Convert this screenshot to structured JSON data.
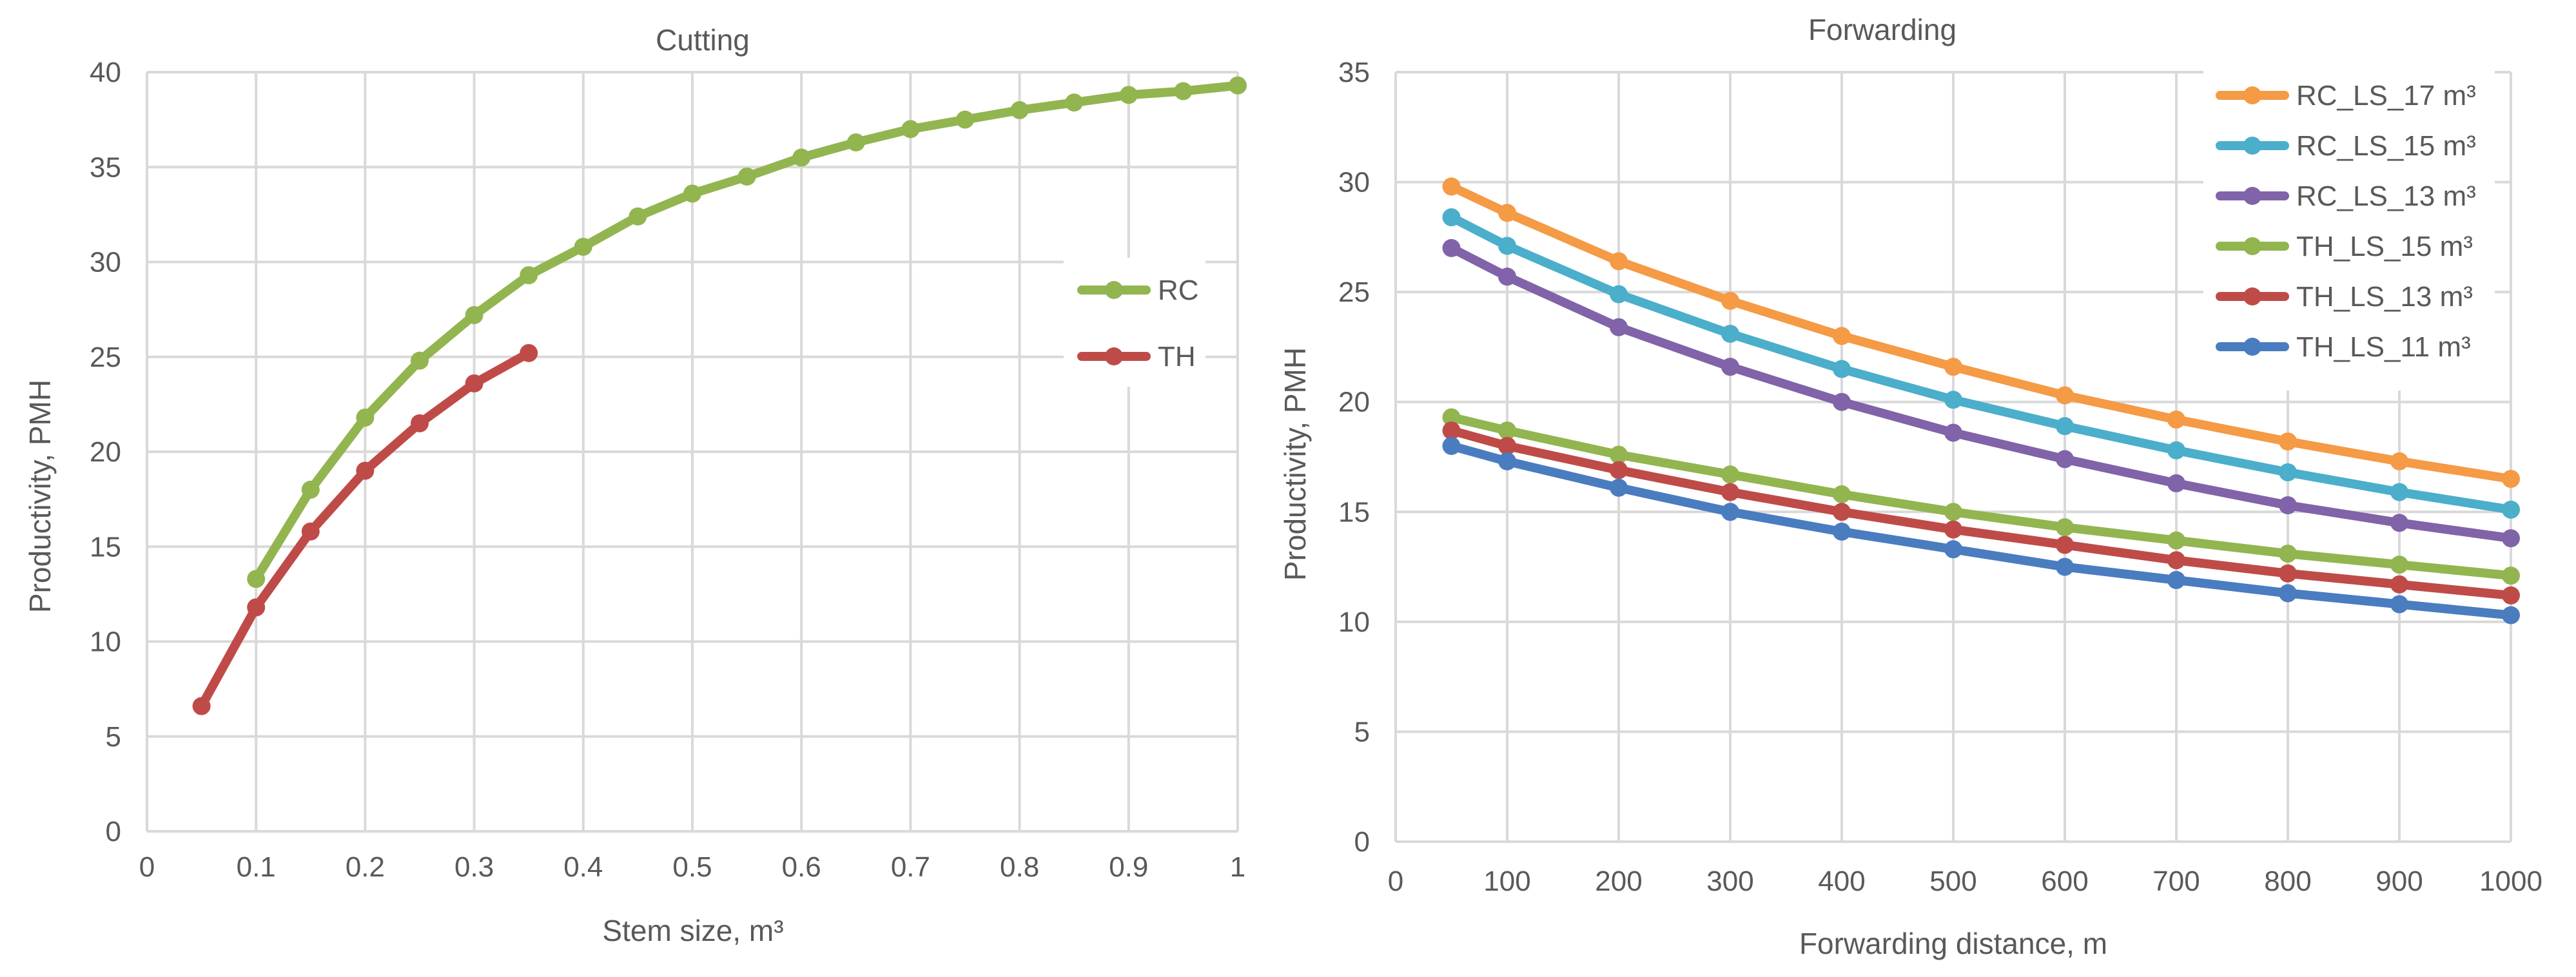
{
  "chart_data": [
    {
      "type": "line",
      "title": "Cutting",
      "xlabel": "Stem size, m³",
      "ylabel": "Productivity, PMH",
      "xlim": [
        0,
        1
      ],
      "ylim": [
        0,
        40
      ],
      "x_ticks": [
        "0",
        "0.1",
        "0.2",
        "0.3",
        "0.4",
        "0.5",
        "0.6",
        "0.7",
        "0.8",
        "0.9",
        "1"
      ],
      "y_ticks": [
        "0",
        "5",
        "10",
        "15",
        "20",
        "25",
        "30",
        "35",
        "40"
      ],
      "legend_position": "right",
      "series": [
        {
          "name": "RC",
          "color": "#92b550",
          "x": [
            0.1,
            0.15,
            0.2,
            0.25,
            0.3,
            0.35,
            0.4,
            0.45,
            0.5,
            0.55,
            0.6,
            0.65,
            0.7,
            0.75,
            0.8,
            0.85,
            0.9,
            0.95,
            1.0
          ],
          "y": [
            13.3,
            18.0,
            21.8,
            24.8,
            27.2,
            29.3,
            30.8,
            32.4,
            33.6,
            34.5,
            35.5,
            36.3,
            37.0,
            37.5,
            38.0,
            38.4,
            38.8,
            39.0,
            39.3
          ]
        },
        {
          "name": "TH",
          "color": "#bf4b48",
          "x": [
            0.05,
            0.1,
            0.15,
            0.2,
            0.25,
            0.3,
            0.35
          ],
          "y": [
            6.6,
            11.8,
            15.8,
            19.0,
            21.5,
            23.6,
            25.2
          ]
        }
      ]
    },
    {
      "type": "line",
      "title": "Forwarding",
      "xlabel": "Forwarding distance, m",
      "ylabel": "Productivity, PMH",
      "xlim": [
        0,
        1000
      ],
      "ylim": [
        0,
        35
      ],
      "x_tick_values": [
        0,
        100,
        200,
        300,
        400,
        500,
        600,
        700,
        800,
        900,
        1000
      ],
      "x_ticks": [
        "0",
        "100",
        "200",
        "300",
        "400",
        "500",
        "600",
        "700",
        "800",
        "900",
        "1000"
      ],
      "y_ticks": [
        "0",
        "5",
        "10",
        "15",
        "20",
        "25",
        "30",
        "35"
      ],
      "legend_position": "top-right",
      "x": [
        50,
        100,
        200,
        300,
        400,
        500,
        600,
        700,
        800,
        900,
        1000
      ],
      "series": [
        {
          "name": "RC_LS_17 m³",
          "color": "#f59a45",
          "y": [
            29.8,
            28.6,
            26.4,
            24.6,
            23.0,
            21.6,
            20.3,
            19.2,
            18.2,
            17.3,
            16.5
          ]
        },
        {
          "name": "RC_LS_15 m³",
          "color": "#4baecb",
          "y": [
            28.4,
            27.1,
            24.9,
            23.1,
            21.5,
            20.1,
            18.9,
            17.8,
            16.8,
            15.9,
            15.1
          ]
        },
        {
          "name": "RC_LS_13 m³",
          "color": "#8063a8",
          "y": [
            27.0,
            25.7,
            23.4,
            21.6,
            20.0,
            18.6,
            17.4,
            16.3,
            15.3,
            14.5,
            13.8
          ]
        },
        {
          "name": "TH_LS_15 m³",
          "color": "#92b550",
          "y": [
            19.3,
            18.7,
            17.6,
            16.7,
            15.8,
            15.0,
            14.3,
            13.7,
            13.1,
            12.6,
            12.1
          ]
        },
        {
          "name": "TH_LS_13 m³",
          "color": "#bf4b48",
          "y": [
            18.7,
            18.0,
            16.9,
            15.9,
            15.0,
            14.2,
            13.5,
            12.8,
            12.2,
            11.7,
            11.2
          ]
        },
        {
          "name": "TH_LS_11 m³",
          "color": "#4a7cc0",
          "y": [
            18.0,
            17.3,
            16.1,
            15.0,
            14.1,
            13.3,
            12.5,
            11.9,
            11.3,
            10.8,
            10.3
          ]
        }
      ]
    }
  ]
}
